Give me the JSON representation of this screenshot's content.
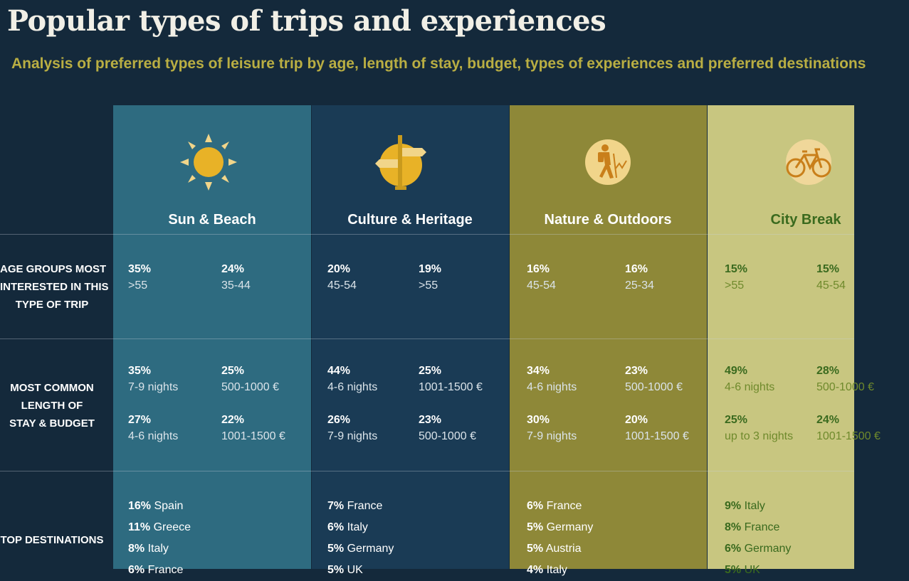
{
  "title": "Popular types of trips and experiences",
  "subtitle": "Analysis of preferred types of leisure trip by age, length of stay, budget, types of experiences and preferred destinations",
  "row_labels": {
    "age": [
      "AGE GROUPS MOST",
      "INTERESTED IN THIS",
      "TYPE OF TRIP"
    ],
    "stay": [
      "MOST COMMON",
      "LENGTH OF",
      "STAY & BUDGET"
    ],
    "destinations": [
      "TOP DESTINATIONS"
    ]
  },
  "columns": [
    {
      "title": "Sun & Beach",
      "icon": "sun-icon",
      "bg_color": "#2e6b80",
      "age": [
        {
          "pct": "35%",
          "label": ">55"
        },
        {
          "pct": "24%",
          "label": "35-44"
        }
      ],
      "stay": [
        {
          "pct": "35%",
          "label": "7-9 nights"
        },
        {
          "pct": "25%",
          "label": "500-1000 €"
        },
        {
          "pct": "27%",
          "label": "4-6 nights"
        },
        {
          "pct": "22%",
          "label": "1001-1500 €"
        }
      ],
      "destinations": [
        {
          "pct": "16%",
          "country": "Spain"
        },
        {
          "pct": "11%",
          "country": "Greece"
        },
        {
          "pct": "8%",
          "country": "Italy"
        },
        {
          "pct": "6%",
          "country": "France"
        }
      ]
    },
    {
      "title": "Culture & Heritage",
      "icon": "signpost-icon",
      "bg_color": "#1a3b55",
      "age": [
        {
          "pct": "20%",
          "label": "45-54"
        },
        {
          "pct": "19%",
          "label": ">55"
        }
      ],
      "stay": [
        {
          "pct": "44%",
          "label": "4-6 nights"
        },
        {
          "pct": "25%",
          "label": "1001-1500 €"
        },
        {
          "pct": "26%",
          "label": "7-9 nights"
        },
        {
          "pct": "23%",
          "label": "500-1000 €"
        }
      ],
      "destinations": [
        {
          "pct": "7%",
          "country": "France"
        },
        {
          "pct": "6%",
          "country": "Italy"
        },
        {
          "pct": "5%",
          "country": "Germany"
        },
        {
          "pct": "5%",
          "country": "UK"
        }
      ]
    },
    {
      "title": "Nature & Outdoors",
      "icon": "hiker-icon",
      "bg_color": "#8e8838",
      "age": [
        {
          "pct": "16%",
          "label": "45-54"
        },
        {
          "pct": "16%",
          "label": "25-34"
        }
      ],
      "stay": [
        {
          "pct": "34%",
          "label": "4-6 nights"
        },
        {
          "pct": "23%",
          "label": "500-1000 €"
        },
        {
          "pct": "30%",
          "label": "7-9 nights"
        },
        {
          "pct": "20%",
          "label": "1001-1500 €"
        }
      ],
      "destinations": [
        {
          "pct": "6%",
          "country": "France"
        },
        {
          "pct": "5%",
          "country": "Germany"
        },
        {
          "pct": "5%",
          "country": "Austria"
        },
        {
          "pct": "4%",
          "country": "Italy"
        }
      ]
    },
    {
      "title": "City Break",
      "icon": "bicycle-icon",
      "bg_color": "#c8c680",
      "age": [
        {
          "pct": "15%",
          "label": ">55"
        },
        {
          "pct": "15%",
          "label": "45-54"
        }
      ],
      "stay": [
        {
          "pct": "49%",
          "label": "4-6 nights"
        },
        {
          "pct": "28%",
          "label": "500-1000 €"
        },
        {
          "pct": "25%",
          "label": "up to 3 nights"
        },
        {
          "pct": "24%",
          "label": "1001-1500 €"
        }
      ],
      "destinations": [
        {
          "pct": "9%",
          "country": "Italy"
        },
        {
          "pct": "8%",
          "country": "France"
        },
        {
          "pct": "6%",
          "country": "Germany"
        },
        {
          "pct": "5%",
          "country": "UK"
        }
      ]
    }
  ]
}
